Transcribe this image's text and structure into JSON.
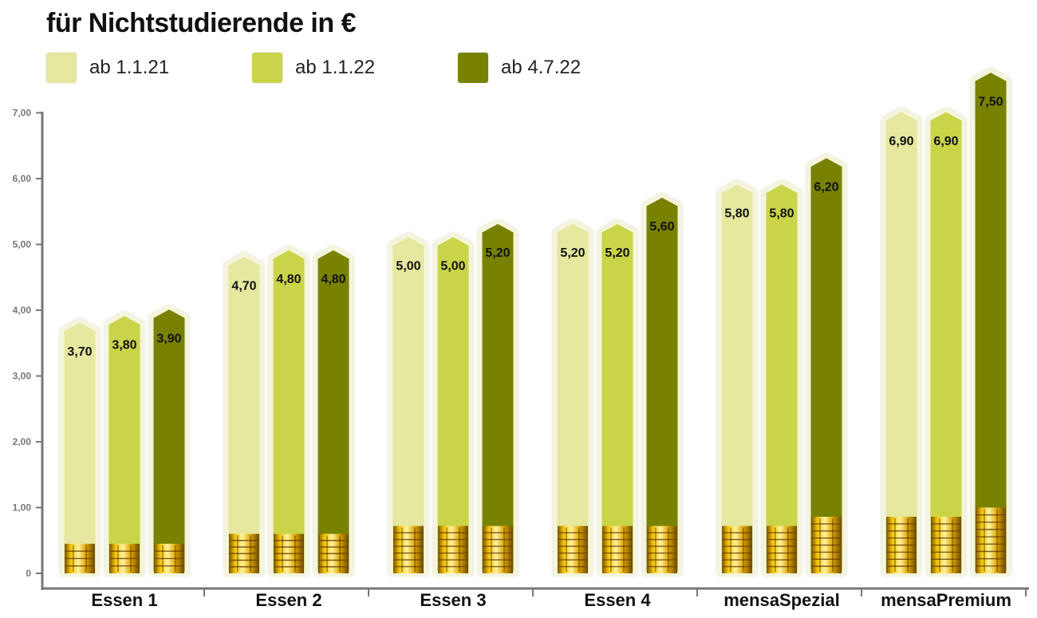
{
  "chart_data": {
    "type": "bar",
    "title": "für Nichtstudierende in €",
    "categories": [
      "Essen 1",
      "Essen 2",
      "Essen 3",
      "Essen 4",
      "mensaSpezial",
      "mensaPremium"
    ],
    "series": [
      {
        "name": "ab 1.1.21",
        "values": [
          3.7,
          4.7,
          5.0,
          5.2,
          5.8,
          6.9
        ],
        "labels": [
          "3,70",
          "4,70",
          "5,00",
          "5,20",
          "5,80",
          "6,90"
        ],
        "color": "#e5e89e",
        "coin_values": [
          0.45,
          0.6,
          0.72,
          0.72,
          0.72,
          0.86
        ]
      },
      {
        "name": "ab 1.1.22",
        "values": [
          3.8,
          4.8,
          5.0,
          5.2,
          5.8,
          6.9
        ],
        "labels": [
          "3,80",
          "4,80",
          "5,00",
          "5,20",
          "5,80",
          "6,90"
        ],
        "color": "#c9d44a",
        "coin_values": [
          0.45,
          0.6,
          0.72,
          0.72,
          0.72,
          0.86
        ]
      },
      {
        "name": "ab 4.7.22",
        "values": [
          3.9,
          4.8,
          5.2,
          5.6,
          6.2,
          7.5
        ],
        "labels": [
          "3,90",
          "4,80",
          "5,20",
          "5,60",
          "6,20",
          "7,50"
        ],
        "color": "#788200",
        "coin_values": [
          0.45,
          0.6,
          0.72,
          0.72,
          0.86,
          1.0
        ]
      }
    ],
    "yticks": [
      "0",
      "1,00",
      "2,00",
      "3,00",
      "4,00",
      "5,00",
      "6,00",
      "7,00"
    ],
    "ylim": [
      0,
      7.5
    ],
    "grid": false,
    "legend": "top-left"
  }
}
